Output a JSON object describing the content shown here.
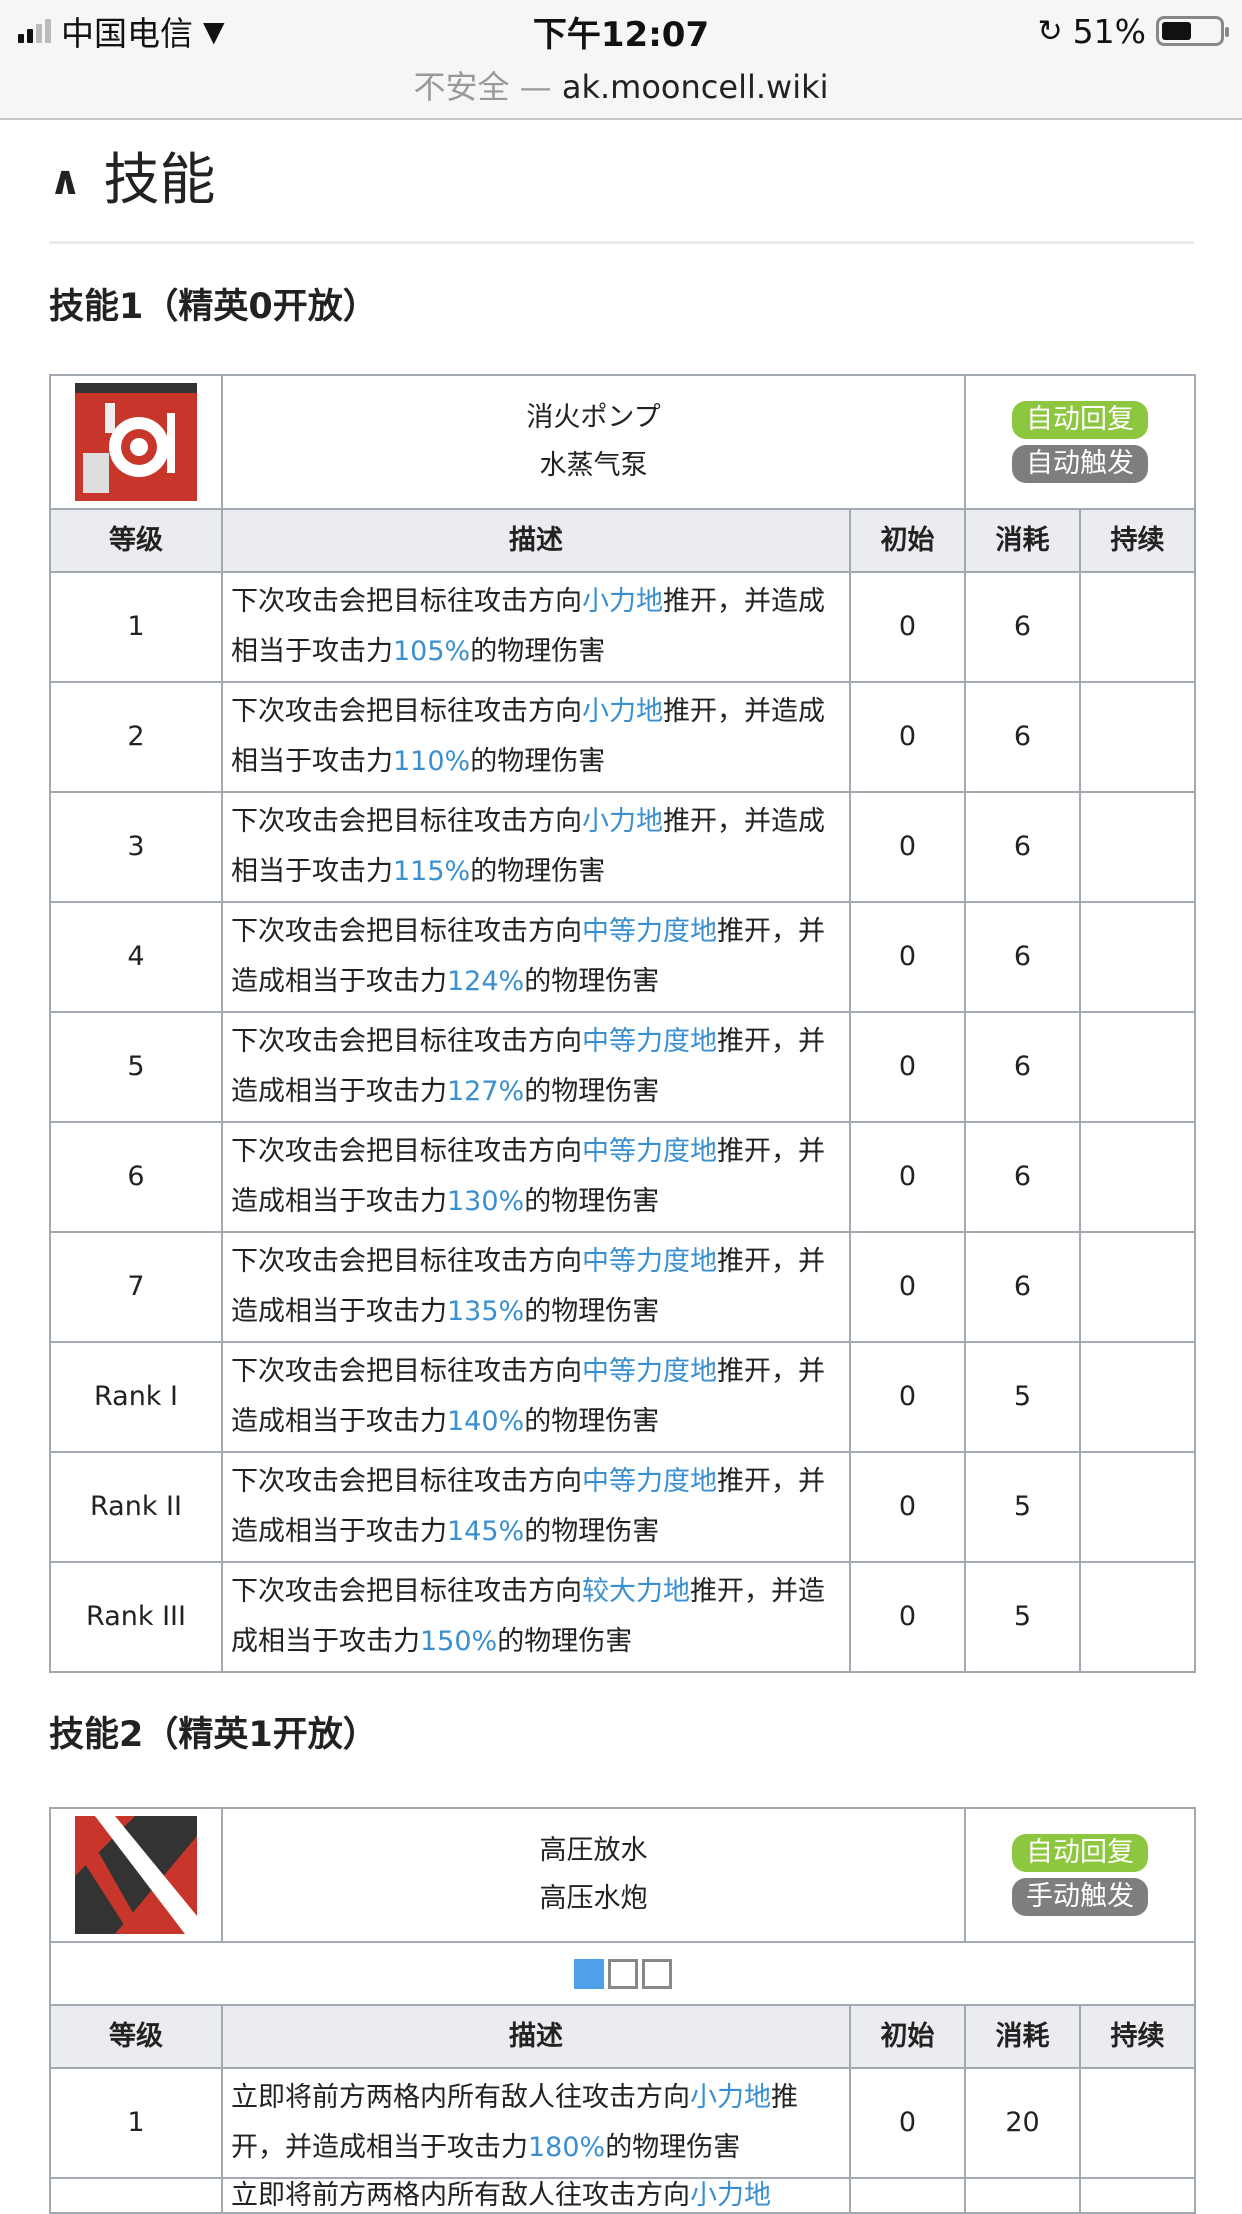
{
  "status_bar": {
    "carrier": "中国电信",
    "time": "下午12:07",
    "battery": "51%",
    "battery_level": 0.51
  },
  "browser": {
    "insecure_label": "不安全 —",
    "domain": "ak.mooncell.wiki"
  },
  "section": {
    "title": "技能"
  },
  "columns": [
    "等级",
    "描述",
    "初始",
    "消耗",
    "持续"
  ],
  "colors": {
    "link": "#3a8fd0",
    "tag_green": "#8dc63f",
    "tag_gray": "#7e7e7e"
  },
  "skill1": {
    "heading": "技能1（精英0开放）",
    "name_jp": "消火ポンプ",
    "name_cn": "水蒸气泵",
    "tag_recovery": "自动回复",
    "tag_trigger": "自动触发",
    "rows": [
      {
        "level": "1",
        "pre": "下次攻击会把目标往攻击方向",
        "hl1": "小力地",
        "mid": "推开，并造成相当于攻击力",
        "hl2": "105%",
        "post": "的物理伤害",
        "init": "0",
        "cost": "6",
        "dur": ""
      },
      {
        "level": "2",
        "pre": "下次攻击会把目标往攻击方向",
        "hl1": "小力地",
        "mid": "推开，并造成相当于攻击力",
        "hl2": "110%",
        "post": "的物理伤害",
        "init": "0",
        "cost": "6",
        "dur": ""
      },
      {
        "level": "3",
        "pre": "下次攻击会把目标往攻击方向",
        "hl1": "小力地",
        "mid": "推开，并造成相当于攻击力",
        "hl2": "115%",
        "post": "的物理伤害",
        "init": "0",
        "cost": "6",
        "dur": ""
      },
      {
        "level": "4",
        "pre": "下次攻击会把目标往攻击方向",
        "hl1": "中等力度地",
        "mid": "推开，并造成相当于攻击力",
        "hl2": "124%",
        "post": "的物理伤害",
        "init": "0",
        "cost": "6",
        "dur": ""
      },
      {
        "level": "5",
        "pre": "下次攻击会把目标往攻击方向",
        "hl1": "中等力度地",
        "mid": "推开，并造成相当于攻击力",
        "hl2": "127%",
        "post": "的物理伤害",
        "init": "0",
        "cost": "6",
        "dur": ""
      },
      {
        "level": "6",
        "pre": "下次攻击会把目标往攻击方向",
        "hl1": "中等力度地",
        "mid": "推开，并造成相当于攻击力",
        "hl2": "130%",
        "post": "的物理伤害",
        "init": "0",
        "cost": "6",
        "dur": ""
      },
      {
        "level": "7",
        "pre": "下次攻击会把目标往攻击方向",
        "hl1": "中等力度地",
        "mid": "推开，并造成相当于攻击力",
        "hl2": "135%",
        "post": "的物理伤害",
        "init": "0",
        "cost": "6",
        "dur": ""
      },
      {
        "level": "Rank I",
        "pre": "下次攻击会把目标往攻击方向",
        "hl1": "中等力度地",
        "mid": "推开，并造成相当于攻击力",
        "hl2": "140%",
        "post": "的物理伤害",
        "init": "0",
        "cost": "5",
        "dur": ""
      },
      {
        "level": "Rank II",
        "pre": "下次攻击会把目标往攻击方向",
        "hl1": "中等力度地",
        "mid": "推开，并造成相当于攻击力",
        "hl2": "145%",
        "post": "的物理伤害",
        "init": "0",
        "cost": "5",
        "dur": ""
      },
      {
        "level": "Rank III",
        "pre": "下次攻击会把目标往攻击方向",
        "hl1": "较大力地",
        "mid": "推开，并造成相当于攻击力",
        "hl2": "150%",
        "post": "的物理伤害",
        "init": "0",
        "cost": "5",
        "dur": ""
      }
    ]
  },
  "skill2": {
    "heading": "技能2（精英1开放）",
    "name_jp": "高圧放水",
    "name_cn": "高压水炮",
    "tag_recovery": "自动回复",
    "tag_trigger": "手动触发",
    "pager_active": 1,
    "rows": [
      {
        "level": "1",
        "pre": "立即将前方两格内所有敌人往攻击方向",
        "hl1": "小力地",
        "mid": "推开，并造成相当于攻击力",
        "hl2": "180%",
        "post": "的物理伤害",
        "init": "0",
        "cost": "20",
        "dur": ""
      },
      {
        "level": "",
        "pre": "立即将前方两格内所有敌人往攻击方向",
        "hl1": "小力地",
        "mid": "",
        "hl2": "",
        "post": "",
        "init": "",
        "cost": "",
        "dur": ""
      }
    ]
  }
}
